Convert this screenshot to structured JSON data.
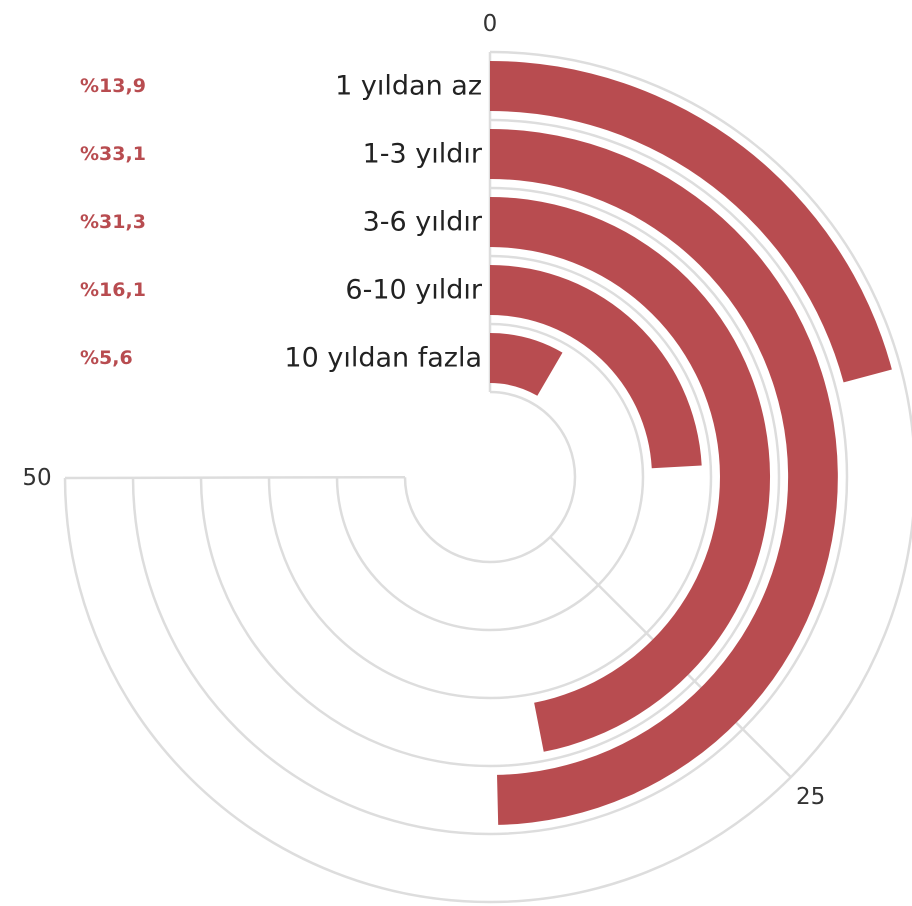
{
  "colors": {
    "bar": "#b84c50",
    "grid": "#dddddd",
    "pct_text": "#b84c50",
    "label_text": "#222222"
  },
  "chart_data": {
    "type": "radial-bar",
    "title": "",
    "categories": [
      "1 yıldan az",
      "1-3 yıldır",
      "3-6 yıldır",
      "6-10 yıldır",
      "10 yıldan fazla"
    ],
    "values": [
      13.9,
      33.1,
      31.3,
      16.1,
      5.6
    ],
    "value_labels": [
      "%13,9",
      "%33,1",
      "%31,3",
      "%16,1",
      "%5,6"
    ],
    "axis_max": 66.7,
    "ticks": [
      0,
      25,
      50
    ],
    "tick_labels": [
      "0",
      "25",
      "50"
    ],
    "grid": true,
    "start_angle": "top",
    "direction": "clockwise"
  }
}
